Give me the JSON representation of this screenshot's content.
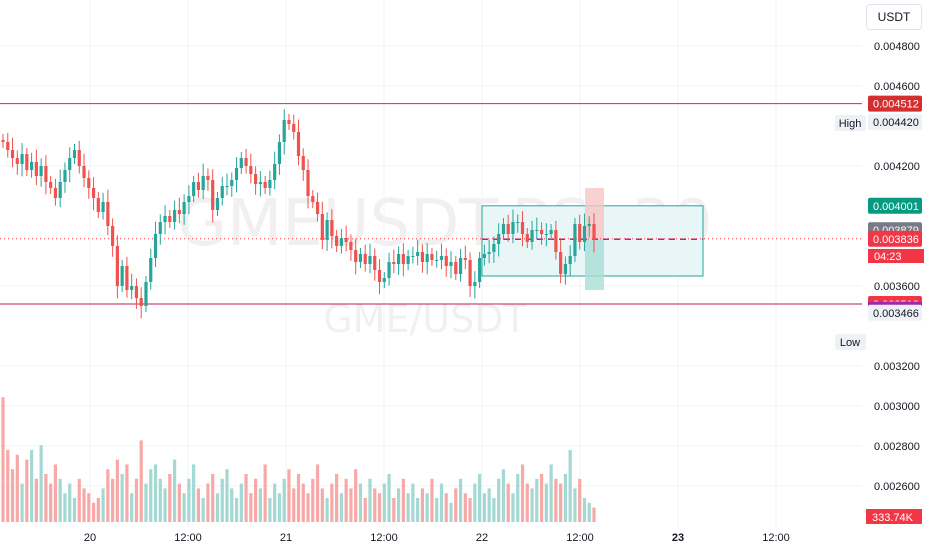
{
  "currency_button": "USDT",
  "watermark": {
    "symbol": "GMEUSDT.PS, 30",
    "pair": "GME/USDT"
  },
  "colors": {
    "up": "#26a69a",
    "down": "#ef5350",
    "vol_up": "#a3d8d3",
    "vol_down": "#f7a9a7",
    "resistance": "#d32f2f",
    "support": "#c2185b",
    "box_border": "#26a69a",
    "box_fill": "#e8f6f7",
    "purple": "#9c27b0"
  },
  "chart_data": {
    "type": "candlestick",
    "y_axis": {
      "min": 0.00248,
      "max": 0.00496,
      "ticks": [
        "0.004800",
        "0.004600",
        "0.004200",
        "0.003600",
        "0.003200",
        "0.003000",
        "0.002800",
        "0.002600"
      ],
      "tick_values": [
        0.0048,
        0.0046,
        0.0042,
        0.0036,
        0.0032,
        0.003,
        0.0028,
        0.0026
      ]
    },
    "x_axis": {
      "labels": [
        "20",
        "12:00",
        "21",
        "12:00",
        "22",
        "12:00",
        "23",
        "12:00"
      ],
      "bold": [
        false,
        false,
        false,
        false,
        false,
        false,
        true,
        false
      ]
    },
    "price_labels": [
      {
        "name": "resistance",
        "text": "0.004512",
        "value": 0.004512,
        "bg": "#d32f2f",
        "fg": "#ffffff"
      },
      {
        "name": "high-value",
        "text": "0.004420",
        "value": 0.00442,
        "bg": "#eef1f6",
        "fg": "#131722"
      },
      {
        "name": "box-top",
        "text": "0.004001",
        "value": 0.004001,
        "bg": "#089981",
        "fg": "#ffffff"
      },
      {
        "name": "mid",
        "text": "0.003879",
        "value": 0.003879,
        "bg": "#787b86",
        "fg": "#ffffff"
      },
      {
        "name": "last-price",
        "text": "0.003836",
        "value": 0.003836,
        "bg": "#f23645",
        "fg": "#ffffff"
      },
      {
        "name": "support",
        "text": "0.003510",
        "value": 0.00351,
        "bg": "#f23645",
        "fg": "#ffffff"
      },
      {
        "name": "purple",
        "text": "0.003482",
        "value": 0.003482,
        "bg": "#9c27b0",
        "fg": "#ffffff"
      },
      {
        "name": "low-value",
        "text": "0.003466",
        "value": 0.003466,
        "bg": "#eef1f6",
        "fg": "#131722"
      }
    ],
    "high_label": "High",
    "low_label": "Low",
    "countdown": "04:23",
    "volume_label": "333.74K",
    "last_price": 0.003836,
    "resistance": 0.004512,
    "support": 0.00351,
    "candles_close": [
      0.00432,
      0.00428,
      0.00424,
      0.00421,
      0.00426,
      0.00418,
      0.00422,
      0.00415,
      0.0042,
      0.00412,
      0.00409,
      0.00404,
      0.00412,
      0.00418,
      0.00424,
      0.00428,
      0.0042,
      0.00414,
      0.00409,
      0.00404,
      0.00397,
      0.00402,
      0.0039,
      0.0038,
      0.0036,
      0.0037,
      0.00358,
      0.0036,
      0.00354,
      0.0035,
      0.00362,
      0.00374,
      0.00386,
      0.00392,
      0.00395,
      0.00392,
      0.00398,
      0.00396,
      0.00402,
      0.00405,
      0.00412,
      0.00408,
      0.00415,
      0.00413,
      0.00398,
      0.00404,
      0.0041,
      0.0041,
      0.00413,
      0.00419,
      0.00424,
      0.0042,
      0.00416,
      0.00411,
      0.00412,
      0.00409,
      0.00413,
      0.00421,
      0.00432,
      0.00443,
      0.00441,
      0.00437,
      0.00425,
      0.00418,
      0.00405,
      0.00402,
      0.00396,
      0.00383,
      0.00393,
      0.00385,
      0.0038,
      0.00384,
      0.00382,
      0.00378,
      0.00372,
      0.00376,
      0.00371,
      0.00375,
      0.00368,
      0.00362,
      0.00364,
      0.00372,
      0.00371,
      0.00376,
      0.00371,
      0.00375,
      0.00375,
      0.00377,
      0.00372,
      0.00376,
      0.00373,
      0.00373,
      0.00375,
      0.0037,
      0.00372,
      0.00366,
      0.00374,
      0.00373,
      0.0036,
      0.00362,
      0.00374,
      0.00376,
      0.00377,
      0.00381,
      0.00386,
      0.00391,
      0.00386,
      0.00392,
      0.00392,
      0.00386,
      0.00382,
      0.00388,
      0.00388,
      0.00386,
      0.00386,
      0.00388,
      0.00377,
      0.00366,
      0.00371,
      0.00375,
      0.00391,
      0.00382,
      0.0039,
      0.00391,
      0.00383
    ],
    "candles_open": [
      0.00433,
      0.00432,
      0.00428,
      0.00424,
      0.00421,
      0.00426,
      0.00418,
      0.00422,
      0.00415,
      0.0042,
      0.00412,
      0.00409,
      0.00404,
      0.00412,
      0.00418,
      0.00424,
      0.00428,
      0.0042,
      0.00414,
      0.00409,
      0.00404,
      0.00397,
      0.00402,
      0.0039,
      0.0038,
      0.0036,
      0.0037,
      0.00358,
      0.0036,
      0.00354,
      0.0035,
      0.00362,
      0.00374,
      0.00386,
      0.00392,
      0.00395,
      0.00392,
      0.00398,
      0.00396,
      0.00402,
      0.00405,
      0.00412,
      0.00408,
      0.00415,
      0.00413,
      0.00398,
      0.00404,
      0.0041,
      0.0041,
      0.00413,
      0.00419,
      0.00424,
      0.0042,
      0.00416,
      0.00411,
      0.00412,
      0.00409,
      0.00413,
      0.00421,
      0.00432,
      0.00443,
      0.00441,
      0.00437,
      0.00425,
      0.00418,
      0.00405,
      0.00402,
      0.00396,
      0.00383,
      0.00393,
      0.00385,
      0.0038,
      0.00384,
      0.00382,
      0.00378,
      0.00372,
      0.00376,
      0.00371,
      0.00375,
      0.00368,
      0.00362,
      0.00364,
      0.00372,
      0.00371,
      0.00376,
      0.00371,
      0.00375,
      0.00375,
      0.00377,
      0.00372,
      0.00376,
      0.00373,
      0.00373,
      0.00375,
      0.0037,
      0.00372,
      0.00366,
      0.00374,
      0.00373,
      0.0036,
      0.00362,
      0.00374,
      0.00376,
      0.00377,
      0.00381,
      0.00386,
      0.00391,
      0.00386,
      0.00392,
      0.00392,
      0.00386,
      0.00382,
      0.00388,
      0.00388,
      0.00386,
      0.00386,
      0.00388,
      0.00377,
      0.00366,
      0.00371,
      0.00375,
      0.00391,
      0.00382,
      0.0039,
      0.00391
    ],
    "volumes": [
      26,
      15,
      11,
      14,
      8,
      13,
      15,
      9,
      16,
      10,
      8,
      12,
      9,
      6,
      8,
      5,
      9,
      7,
      6,
      4,
      5,
      7,
      11,
      9,
      13,
      10,
      12,
      6,
      9,
      17,
      8,
      11,
      12,
      9,
      7,
      10,
      13,
      8,
      6,
      9,
      12,
      7,
      5,
      8,
      10,
      6,
      9,
      11,
      7,
      5,
      8,
      10,
      6,
      9,
      7,
      12,
      5,
      8,
      6,
      9,
      11,
      7,
      10,
      8,
      6,
      9,
      12,
      7,
      5,
      8,
      10,
      6,
      9,
      7,
      11,
      8,
      5,
      9,
      7,
      6,
      8,
      10,
      5,
      7,
      9,
      6,
      8,
      5,
      7,
      6,
      9,
      5,
      8,
      6,
      4,
      7,
      9,
      6,
      5,
      8,
      10,
      6,
      7,
      5,
      9,
      11,
      8,
      6,
      10,
      12,
      8,
      7,
      9,
      10,
      8,
      12,
      9,
      8,
      10,
      15,
      7,
      9,
      5,
      4,
      3
    ]
  }
}
